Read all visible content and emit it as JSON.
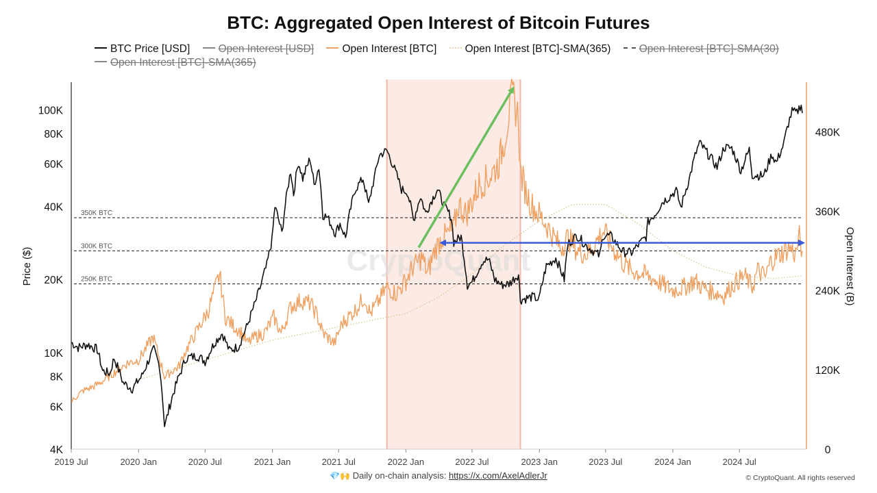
{
  "chart_data": {
    "type": "line",
    "title": "BTC: Aggregated Open Interest of Bitcoin Futures",
    "ylabel_left": "Price ($)",
    "ylabel_right": "Open Interest (B)",
    "y_left_scale": "log",
    "ylim_left": [
      4000,
      130000
    ],
    "ylim_right": [
      0,
      555000
    ],
    "x_range": [
      "2019-07-01",
      "2024-12-20"
    ],
    "x_ticks": [
      {
        "date": "2019-07-01",
        "label": "2019 Jul"
      },
      {
        "date": "2020-01-01",
        "label": "2020 Jan"
      },
      {
        "date": "2020-07-01",
        "label": "2020 Jul"
      },
      {
        "date": "2021-01-01",
        "label": "2021 Jan"
      },
      {
        "date": "2021-07-01",
        "label": "2021 Jul"
      },
      {
        "date": "2022-01-01",
        "label": "2022 Jan"
      },
      {
        "date": "2022-07-01",
        "label": "2022 Jul"
      },
      {
        "date": "2023-01-01",
        "label": "2023 Jan"
      },
      {
        "date": "2023-07-01",
        "label": "2023 Jul"
      },
      {
        "date": "2024-01-01",
        "label": "2024 Jan"
      },
      {
        "date": "2024-07-01",
        "label": "2024 Jul"
      }
    ],
    "y_left_ticks": [
      {
        "value": 4000,
        "label": "4K"
      },
      {
        "value": 6000,
        "label": "6K"
      },
      {
        "value": 8000,
        "label": "8K"
      },
      {
        "value": 10000,
        "label": "10K"
      },
      {
        "value": 20000,
        "label": "20K"
      },
      {
        "value": 40000,
        "label": "40K"
      },
      {
        "value": 60000,
        "label": "60K"
      },
      {
        "value": 80000,
        "label": "80K"
      },
      {
        "value": 100000,
        "label": "100K"
      }
    ],
    "y_right_ticks": [
      {
        "value": 0,
        "label": "0"
      },
      {
        "value": 120000,
        "label": "120K"
      },
      {
        "value": 240000,
        "label": "240K"
      },
      {
        "value": 360000,
        "label": "360K"
      },
      {
        "value": 480000,
        "label": "480K"
      }
    ],
    "legend": [
      {
        "name": "BTC Price [USD]",
        "color": "#111111",
        "style": "solid",
        "active": true
      },
      {
        "name": "Open Interest [USD]",
        "color": "#888888",
        "style": "solid",
        "active": false
      },
      {
        "name": "Open Interest [BTC]",
        "color": "#f0a060",
        "style": "solid",
        "active": true
      },
      {
        "name": "Open Interest [BTC]-SMA(365)",
        "color": "#e8d9a8",
        "style": "dotted",
        "active": true
      },
      {
        "name": "Open Interest [BTC]-SMA(30)",
        "color": "#777777",
        "style": "dashed",
        "active": false
      },
      {
        "name": "Open Interest [BTC]-SMA(365)",
        "color": "#888888",
        "style": "solid",
        "active": false
      }
    ],
    "reference_lines": [
      {
        "value": 350000,
        "label": "350K BTC"
      },
      {
        "value": 300000,
        "label": "300K BTC"
      },
      {
        "value": 250000,
        "label": "250K BTC"
      }
    ],
    "highlight_band": {
      "start": "2021-11-10",
      "end": "2022-11-10",
      "color": "#fbe3dc"
    },
    "annotations": [
      {
        "type": "arrow",
        "color": "#6cbf5e",
        "from": {
          "date": "2022-02-05",
          "oi": 305000
        },
        "to": {
          "date": "2022-10-20",
          "oi": 545000
        }
      },
      {
        "type": "double-arrow",
        "color": "#3a5bd9",
        "from": {
          "date": "2022-04-10",
          "oi": 312000
        },
        "to": {
          "date": "2024-12-20",
          "oi": 312000
        }
      }
    ],
    "series": [
      {
        "name": "BTC Price [USD]",
        "axis": "left",
        "color": "#111111",
        "points": [
          [
            "2019-07-01",
            11000
          ],
          [
            "2019-07-20",
            10500
          ],
          [
            "2019-08-15",
            10800
          ],
          [
            "2019-09-10",
            10300
          ],
          [
            "2019-09-25",
            8400
          ],
          [
            "2019-10-15",
            8200
          ],
          [
            "2019-10-26",
            9500
          ],
          [
            "2019-11-20",
            7500
          ],
          [
            "2019-12-15",
            7100
          ],
          [
            "2020-01-10",
            8000
          ],
          [
            "2020-02-12",
            10300
          ],
          [
            "2020-02-28",
            8700
          ],
          [
            "2020-03-12",
            5000
          ],
          [
            "2020-03-16",
            5200
          ],
          [
            "2020-04-05",
            6800
          ],
          [
            "2020-04-30",
            8700
          ],
          [
            "2020-05-10",
            9500
          ],
          [
            "2020-06-10",
            9700
          ],
          [
            "2020-07-01",
            9200
          ],
          [
            "2020-07-27",
            11000
          ],
          [
            "2020-08-17",
            12000
          ],
          [
            "2020-09-05",
            10200
          ],
          [
            "2020-10-01",
            10600
          ],
          [
            "2020-10-25",
            13000
          ],
          [
            "2020-11-15",
            16000
          ],
          [
            "2020-12-01",
            19000
          ],
          [
            "2020-12-17",
            23000
          ],
          [
            "2020-12-31",
            29000
          ],
          [
            "2021-01-08",
            40000
          ],
          [
            "2021-01-27",
            31000
          ],
          [
            "2021-02-20",
            56000
          ],
          [
            "2021-02-28",
            45000
          ],
          [
            "2021-03-13",
            61000
          ],
          [
            "2021-03-25",
            52000
          ],
          [
            "2021-04-14",
            63000
          ],
          [
            "2021-04-25",
            49000
          ],
          [
            "2021-05-08",
            58000
          ],
          [
            "2021-05-19",
            37000
          ],
          [
            "2021-06-01",
            36000
          ],
          [
            "2021-06-22",
            31000
          ],
          [
            "2021-07-05",
            34000
          ],
          [
            "2021-07-20",
            29800
          ],
          [
            "2021-08-15",
            47000
          ],
          [
            "2021-09-06",
            52000
          ],
          [
            "2021-09-21",
            40500
          ],
          [
            "2021-10-10",
            55000
          ],
          [
            "2021-10-20",
            65000
          ],
          [
            "2021-11-10",
            68000
          ],
          [
            "2021-12-01",
            57000
          ],
          [
            "2021-12-20",
            47000
          ],
          [
            "2022-01-05",
            46000
          ],
          [
            "2022-01-22",
            35000
          ],
          [
            "2022-02-10",
            44000
          ],
          [
            "2022-02-24",
            37500
          ],
          [
            "2022-03-28",
            47000
          ],
          [
            "2022-04-15",
            40500
          ],
          [
            "2022-05-05",
            36000
          ],
          [
            "2022-05-12",
            28500
          ],
          [
            "2022-06-01",
            30000
          ],
          [
            "2022-06-18",
            19000
          ],
          [
            "2022-07-01",
            19500
          ],
          [
            "2022-07-30",
            23800
          ],
          [
            "2022-08-15",
            24200
          ],
          [
            "2022-09-01",
            20000
          ],
          [
            "2022-09-20",
            19000
          ],
          [
            "2022-10-10",
            19200
          ],
          [
            "2022-11-05",
            21000
          ],
          [
            "2022-11-10",
            16500
          ],
          [
            "2022-12-15",
            17000
          ],
          [
            "2022-12-31",
            16500
          ],
          [
            "2023-01-20",
            22700
          ],
          [
            "2023-02-15",
            24500
          ],
          [
            "2023-03-10",
            20000
          ],
          [
            "2023-03-20",
            28000
          ],
          [
            "2023-04-14",
            30400
          ],
          [
            "2023-05-10",
            27500
          ],
          [
            "2023-06-15",
            25000
          ],
          [
            "2023-06-25",
            30500
          ],
          [
            "2023-07-15",
            30200
          ],
          [
            "2023-08-17",
            26000
          ],
          [
            "2023-09-10",
            25800
          ],
          [
            "2023-10-20",
            30000
          ],
          [
            "2023-10-25",
            34500
          ],
          [
            "2023-11-15",
            37500
          ],
          [
            "2023-12-05",
            42000
          ],
          [
            "2023-12-20",
            43500
          ],
          [
            "2024-01-10",
            46500
          ],
          [
            "2024-01-23",
            39500
          ],
          [
            "2024-02-15",
            52000
          ],
          [
            "2024-03-05",
            67000
          ],
          [
            "2024-03-14",
            73000
          ],
          [
            "2024-04-15",
            63000
          ],
          [
            "2024-05-01",
            58000
          ],
          [
            "2024-05-20",
            70000
          ],
          [
            "2024-06-10",
            69500
          ],
          [
            "2024-07-05",
            56000
          ],
          [
            "2024-07-28",
            68500
          ],
          [
            "2024-08-05",
            54000
          ],
          [
            "2024-09-06",
            53500
          ],
          [
            "2024-09-28",
            65500
          ],
          [
            "2024-10-10",
            60500
          ],
          [
            "2024-10-30",
            72000
          ],
          [
            "2024-11-12",
            88000
          ],
          [
            "2024-11-22",
            98500
          ],
          [
            "2024-12-05",
            97000
          ],
          [
            "2024-12-17",
            106000
          ],
          [
            "2024-12-20",
            97000
          ]
        ]
      },
      {
        "name": "Open Interest [BTC]",
        "axis": "right",
        "color": "#f0a060",
        "points": [
          [
            "2019-07-01",
            72000
          ],
          [
            "2019-08-01",
            88000
          ],
          [
            "2019-09-01",
            95000
          ],
          [
            "2019-10-01",
            105000
          ],
          [
            "2019-11-01",
            118000
          ],
          [
            "2019-12-01",
            130000
          ],
          [
            "2020-01-01",
            135000
          ],
          [
            "2020-02-10",
            170000
          ],
          [
            "2020-03-12",
            110000
          ],
          [
            "2020-03-25",
            115000
          ],
          [
            "2020-04-20",
            125000
          ],
          [
            "2020-05-10",
            150000
          ],
          [
            "2020-06-10",
            180000
          ],
          [
            "2020-07-10",
            210000
          ],
          [
            "2020-08-10",
            265000
          ],
          [
            "2020-08-25",
            200000
          ],
          [
            "2020-09-10",
            190000
          ],
          [
            "2020-10-10",
            175000
          ],
          [
            "2020-10-25",
            160000
          ],
          [
            "2020-11-15",
            170000
          ],
          [
            "2020-12-10",
            175000
          ],
          [
            "2021-01-05",
            200000
          ],
          [
            "2021-01-25",
            175000
          ],
          [
            "2021-02-20",
            215000
          ],
          [
            "2021-03-20",
            225000
          ],
          [
            "2021-04-15",
            220000
          ],
          [
            "2021-05-01",
            205000
          ],
          [
            "2021-05-20",
            175000
          ],
          [
            "2021-06-20",
            160000
          ],
          [
            "2021-07-10",
            190000
          ],
          [
            "2021-08-15",
            210000
          ],
          [
            "2021-09-10",
            230000
          ],
          [
            "2021-09-25",
            205000
          ],
          [
            "2021-10-20",
            225000
          ],
          [
            "2021-11-10",
            245000
          ],
          [
            "2021-12-05",
            235000
          ],
          [
            "2022-01-01",
            255000
          ],
          [
            "2022-01-20",
            275000
          ],
          [
            "2022-02-15",
            290000
          ],
          [
            "2022-03-01",
            265000
          ],
          [
            "2022-03-20",
            300000
          ],
          [
            "2022-04-10",
            320000
          ],
          [
            "2022-05-10",
            330000
          ],
          [
            "2022-05-25",
            370000
          ],
          [
            "2022-06-15",
            355000
          ],
          [
            "2022-07-01",
            375000
          ],
          [
            "2022-07-20",
            400000
          ],
          [
            "2022-08-15",
            410000
          ],
          [
            "2022-09-10",
            430000
          ],
          [
            "2022-09-25",
            460000
          ],
          [
            "2022-10-10",
            510000
          ],
          [
            "2022-10-20",
            535000
          ],
          [
            "2022-11-05",
            500000
          ],
          [
            "2022-11-10",
            420000
          ],
          [
            "2022-11-25",
            390000
          ],
          [
            "2022-12-10",
            370000
          ],
          [
            "2022-12-31",
            355000
          ],
          [
            "2023-01-20",
            340000
          ],
          [
            "2023-02-10",
            320000
          ],
          [
            "2023-03-01",
            305000
          ],
          [
            "2023-03-20",
            320000
          ],
          [
            "2023-04-15",
            300000
          ],
          [
            "2023-05-10",
            295000
          ],
          [
            "2023-06-01",
            310000
          ],
          [
            "2023-06-25",
            330000
          ],
          [
            "2023-07-15",
            310000
          ],
          [
            "2023-08-20",
            280000
          ],
          [
            "2023-09-10",
            270000
          ],
          [
            "2023-10-10",
            265000
          ],
          [
            "2023-11-01",
            260000
          ],
          [
            "2023-12-01",
            250000
          ],
          [
            "2024-01-01",
            240000
          ],
          [
            "2024-02-01",
            245000
          ],
          [
            "2024-03-01",
            255000
          ],
          [
            "2024-03-20",
            245000
          ],
          [
            "2024-04-20",
            238000
          ],
          [
            "2024-05-20",
            232000
          ],
          [
            "2024-06-15",
            250000
          ],
          [
            "2024-07-15",
            262000
          ],
          [
            "2024-08-05",
            245000
          ],
          [
            "2024-08-20",
            270000
          ],
          [
            "2024-09-10",
            260000
          ],
          [
            "2024-09-25",
            285000
          ],
          [
            "2024-10-20",
            295000
          ],
          [
            "2024-11-15",
            305000
          ],
          [
            "2024-12-01",
            295000
          ],
          [
            "2024-12-12",
            320000
          ],
          [
            "2024-12-20",
            300000
          ]
        ]
      },
      {
        "name": "Open Interest [BTC]-SMA(365)",
        "axis": "right",
        "color": "#e8d9a8",
        "points": [
          [
            "2020-01-01",
            105000
          ],
          [
            "2020-07-01",
            135000
          ],
          [
            "2021-01-01",
            165000
          ],
          [
            "2021-07-01",
            185000
          ],
          [
            "2022-01-01",
            205000
          ],
          [
            "2022-04-01",
            230000
          ],
          [
            "2022-07-01",
            265000
          ],
          [
            "2022-10-01",
            310000
          ],
          [
            "2023-01-01",
            345000
          ],
          [
            "2023-04-01",
            370000
          ],
          [
            "2023-07-01",
            370000
          ],
          [
            "2023-10-01",
            340000
          ],
          [
            "2024-01-01",
            300000
          ],
          [
            "2024-04-01",
            275000
          ],
          [
            "2024-07-01",
            262000
          ],
          [
            "2024-10-01",
            258000
          ],
          [
            "2024-12-20",
            262000
          ]
        ]
      }
    ]
  },
  "watermark": "CryptoQuant",
  "footer": {
    "emoji": "💎🙌",
    "text": "Daily on-chain analysis: ",
    "link": "https://x.com/AxelAdlerJr"
  },
  "copyright": "© CryptoQuant. All rights reserved"
}
